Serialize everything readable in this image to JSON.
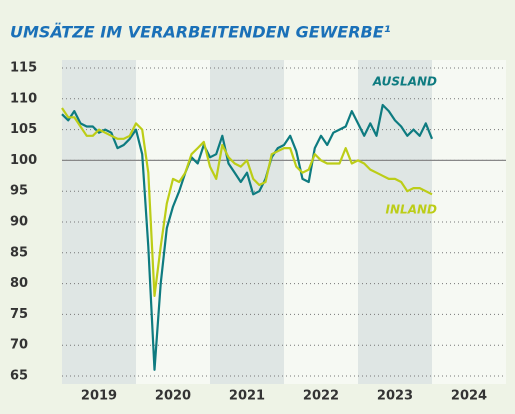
{
  "chart_data": {
    "type": "line",
    "title": "UMSÄTZE IM VERARBEITENDEN GEWERBE¹",
    "xlim": [
      2019,
      2025
    ],
    "ylim": [
      65,
      115
    ],
    "yticks": [
      65,
      70,
      75,
      80,
      85,
      90,
      95,
      100,
      105,
      110,
      115
    ],
    "reference_line": 100,
    "grid": true,
    "bands": [
      {
        "label": "2019",
        "start": 2019,
        "end": 2020
      },
      {
        "label": "2020",
        "start": 2020,
        "end": 2021
      },
      {
        "label": "2021",
        "start": 2021,
        "end": 2022
      },
      {
        "label": "2022",
        "start": 2022,
        "end": 2023
      },
      {
        "label": "2023",
        "start": 2023,
        "end": 2024
      },
      {
        "label": "2024",
        "start": 2024,
        "end": 2025
      }
    ],
    "x": [
      2019,
      2019.0833,
      2019.1667,
      2019.25,
      2019.3333,
      2019.4167,
      2019.5,
      2019.5833,
      2019.6667,
      2019.75,
      2019.8333,
      2019.9167,
      2020,
      2020.0833,
      2020.1667,
      2020.25,
      2020.3333,
      2020.4167,
      2020.5,
      2020.5833,
      2020.6667,
      2020.75,
      2020.8333,
      2020.9167,
      2021,
      2021.0833,
      2021.1667,
      2021.25,
      2021.3333,
      2021.4167,
      2021.5,
      2021.5833,
      2021.6667,
      2021.75,
      2021.8333,
      2021.9167,
      2022,
      2022.0833,
      2022.1667,
      2022.25,
      2022.3333,
      2022.4167,
      2022.5,
      2022.5833,
      2022.6667,
      2022.75,
      2022.8333,
      2022.9167,
      2023,
      2023.0833,
      2023.1667,
      2023.25,
      2023.3333,
      2023.4167,
      2023.5,
      2023.5833,
      2023.6667,
      2023.75,
      2023.8333,
      2023.9167,
      2024
    ],
    "series": [
      {
        "name": "AUSLAND",
        "color": "#0e7b80",
        "values": [
          107.5,
          106.5,
          108,
          106,
          105.5,
          105.5,
          104.5,
          105,
          104.5,
          102,
          102.5,
          103.5,
          105,
          101,
          86,
          66,
          80,
          89,
          92.5,
          95,
          98,
          100.5,
          99.5,
          102.5,
          100.5,
          101,
          104,
          99.5,
          98,
          96.5,
          98,
          94.5,
          95,
          97,
          100.5,
          102,
          102.5,
          104,
          101.5,
          97,
          96.5,
          102,
          104,
          102.5,
          104.5,
          105,
          105.5,
          108,
          106,
          104,
          106,
          104,
          109,
          108,
          106.5,
          105.5,
          104,
          105,
          104,
          106,
          103.5
        ]
      },
      {
        "name": "INLAND",
        "color": "#bccd17",
        "values": [
          108.5,
          107,
          107,
          105.5,
          104,
          104,
          105,
          104.5,
          104,
          103.5,
          103.5,
          104,
          106,
          105,
          98,
          78,
          86,
          93,
          97,
          96.5,
          98,
          101,
          102,
          103,
          99,
          97,
          102.5,
          100.5,
          99.5,
          99,
          100,
          97,
          96,
          96.5,
          101,
          101.5,
          102,
          102,
          99,
          98,
          98.5,
          101,
          100,
          99.5,
          99.5,
          99.5,
          102,
          99.5,
          100,
          99.5,
          98.5,
          98,
          97.5,
          97,
          97,
          96.5,
          95,
          95.5,
          95.5,
          95,
          94.5
        ]
      }
    ]
  }
}
